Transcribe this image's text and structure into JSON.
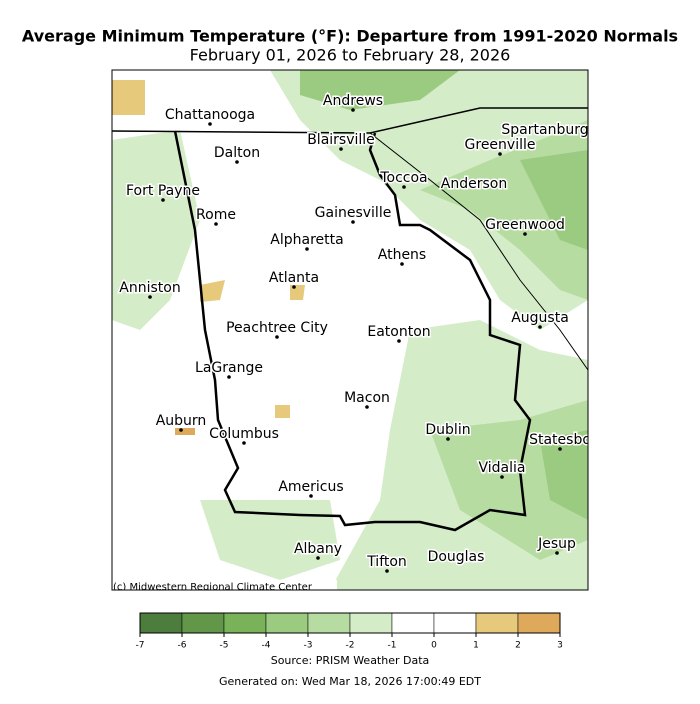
{
  "title": "Average Minimum Temperature (°F): Departure from 1991-2020 Normals",
  "subtitle": "February 01, 2026 to February 28, 2026",
  "credit": "(c) Midwestern Regional Climate Center",
  "cities": [
    "Andrews",
    "Chattanooga",
    "Blairsville",
    "Spartanburg",
    "Greenville",
    "Dalton",
    "Toccoa",
    "Anderson",
    "Fort Payne",
    "Rome",
    "Gainesville",
    "Greenwood",
    "Alpharetta",
    "Athens",
    "Atlanta",
    "Anniston",
    "Augusta",
    "Peachtree City",
    "Eatonton",
    "LaGrange",
    "Macon",
    "Auburn",
    "Dublin",
    "Columbus",
    "Statesbo",
    "Vidalia",
    "Americus",
    "Albany",
    "Jesup",
    "Douglas",
    "Tifton"
  ],
  "colorbar": {
    "ticks": [
      -7,
      -6,
      -5,
      -4,
      -3,
      -2,
      -1,
      0,
      1,
      2,
      3
    ],
    "colors": [
      "#4c7d3c",
      "#62974a",
      "#79b259",
      "#9acb80",
      "#b7dca1",
      "#d4ecc8",
      "#ffffff",
      "#ffffff",
      "#e7c97c",
      "#dfa95c"
    ]
  },
  "source": "Source: PRISM Weather Data",
  "generated": "Generated on: Wed Mar 18, 2026 17:00:49 EDT"
}
